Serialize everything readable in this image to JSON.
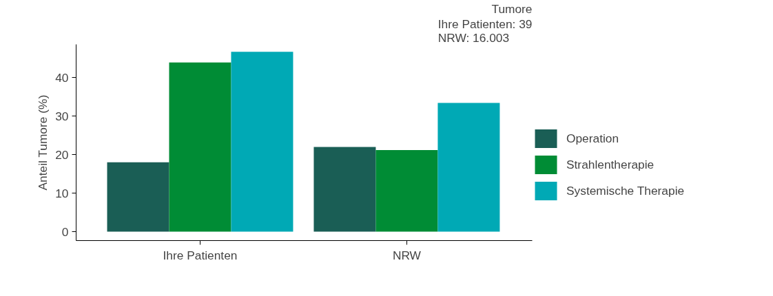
{
  "chart_data": {
    "type": "bar",
    "title": "Tumore",
    "subtitle": "Ihre Patienten: 39\nNRW: 16.003",
    "ylabel": "Anteil Tumore (%)",
    "categories": [
      "Ihre Patienten",
      "NRW"
    ],
    "series": [
      {
        "name": "Operation",
        "color": "#1a5e55",
        "values": [
          18.0,
          22.0
        ]
      },
      {
        "name": "Strahlentherapie",
        "color": "#008c35",
        "values": [
          43.9,
          21.2
        ]
      },
      {
        "name": "Systemische Therapie",
        "color": "#00a9b5",
        "values": [
          46.7,
          33.4
        ]
      }
    ],
    "ylim": [
      -2.3,
      48.6
    ],
    "yticks": [
      0,
      10,
      20,
      30,
      40
    ],
    "grid": false,
    "legend": "right"
  }
}
